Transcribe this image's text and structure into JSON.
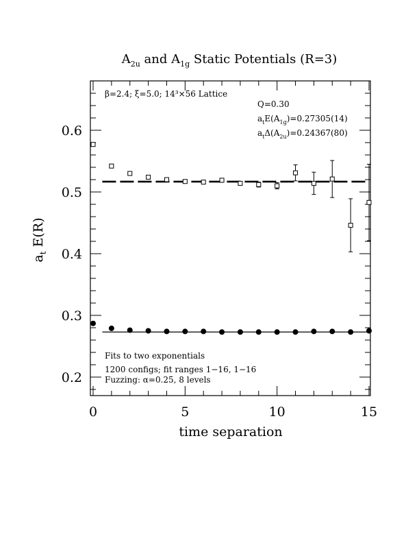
{
  "chart_data": {
    "type": "scatter",
    "title": "A2u and A1g Static Potentials (R=3)",
    "title_parts": {
      "a": "A",
      "a_sub": "2u",
      "mid": " and A",
      "b_sub": "1g",
      "rest": " Static Potentials (R=3)"
    },
    "xlabel": "time separation",
    "ylabel": "a",
    "ylabel_sub": "t",
    "ylabel_rest": " E(R)",
    "xlim": [
      0,
      15
    ],
    "ylim": [
      0.17,
      0.68
    ],
    "xticks": [
      0,
      5,
      10,
      15
    ],
    "xtick_labels": [
      "0",
      "5",
      "10",
      "15"
    ],
    "yticks": [
      0.2,
      0.3,
      0.4,
      0.5,
      0.6
    ],
    "ytick_labels": [
      "0.2",
      "0.3",
      "0.4",
      "0.5",
      "0.6"
    ],
    "grid": false,
    "annotations": {
      "lattice": "β=2.4; ξ=5.0; 14³×56 Lattice",
      "q": "Q=0.30",
      "e1g": {
        "pre": "a",
        "sub1": "t",
        "mid": "E(A",
        "sub2": "1g",
        "post": ")=0.27305(14)"
      },
      "d2u": {
        "pre": "a",
        "sub1": "t",
        "mid": "Δ(A",
        "sub2": "2u",
        "post": ")=0.24367(80)"
      },
      "fit1": "Fits to two exponentials",
      "fit2": "1200 configs; fit ranges 1−16, 1−16",
      "fit3": "Fuzzing: α=0.25, 8 levels"
    },
    "series": [
      {
        "name": "A2u",
        "marker": "open-square",
        "x": [
          0,
          1,
          2,
          3,
          4,
          5,
          6,
          7,
          8,
          9,
          10,
          11,
          12,
          13,
          14,
          15
        ],
        "y": [
          0.577,
          0.542,
          0.53,
          0.524,
          0.52,
          0.517,
          0.516,
          0.519,
          0.514,
          0.512,
          0.51,
          0.531,
          0.514,
          0.521,
          0.446,
          0.483
        ],
        "err": [
          0.001,
          0.001,
          0.002,
          0.003,
          0.002,
          0.002,
          0.002,
          0.003,
          0.003,
          0.004,
          0.005,
          0.013,
          0.018,
          0.03,
          0.043,
          0.062
        ],
        "fit": {
          "y": 0.5167,
          "x": [
            0.5,
            15
          ],
          "style": "dashed"
        }
      },
      {
        "name": "A1g",
        "marker": "filled-circle",
        "x": [
          0,
          1,
          2,
          3,
          4,
          5,
          6,
          7,
          8,
          9,
          10,
          11,
          12,
          13,
          14,
          15
        ],
        "y": [
          0.287,
          0.279,
          0.276,
          0.275,
          0.274,
          0.274,
          0.274,
          0.273,
          0.273,
          0.273,
          0.273,
          0.273,
          0.274,
          0.274,
          0.273,
          0.275
        ],
        "err": [
          0,
          0,
          0,
          0,
          0,
          0,
          0,
          0,
          0,
          0,
          0,
          0,
          0,
          0,
          0,
          0.002
        ],
        "fit": {
          "y": 0.27305,
          "x": [
            0.5,
            15
          ],
          "style": "solid"
        }
      }
    ]
  }
}
